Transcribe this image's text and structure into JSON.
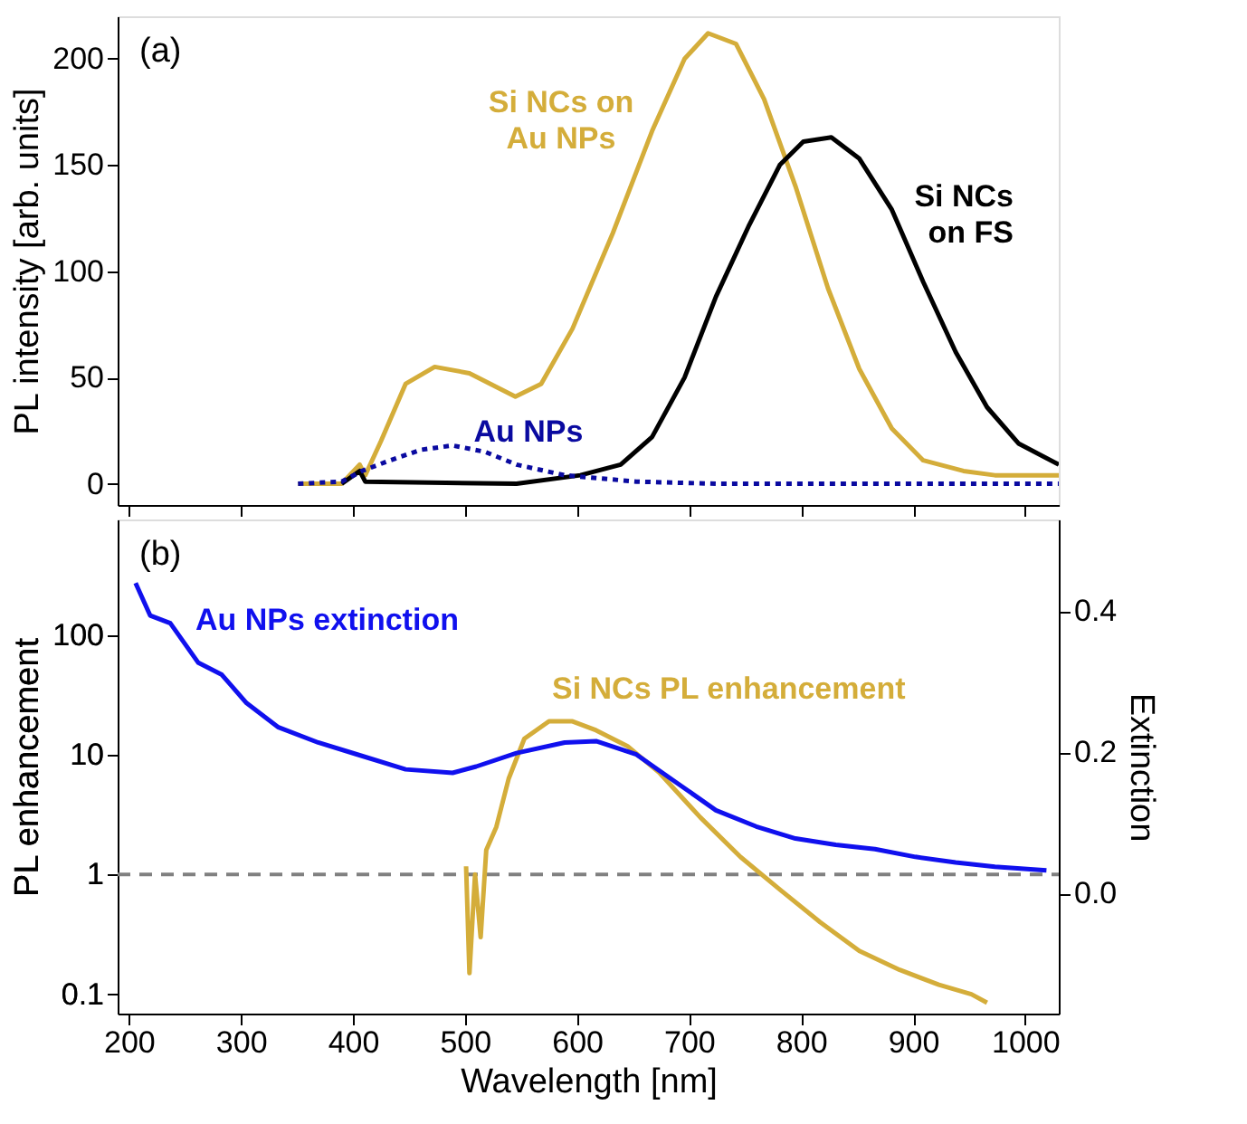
{
  "chart_data": [
    {
      "type": "line",
      "ylabel": "PL intensity [arb. units]",
      "xlim": [
        190,
        1030
      ],
      "xticks": [
        200,
        300,
        400,
        500,
        600,
        700,
        800,
        900,
        1000
      ],
      "ylim": [
        -10,
        220
      ],
      "yticks": [
        0,
        50,
        100,
        150,
        200
      ],
      "tick_labels": "y",
      "annotations": [
        "(a)"
      ],
      "series": [
        {
          "name": "Si NCs on\nAu NPs",
          "color": "#d4ad3a",
          "line_style": "solid",
          "x": [
            351,
            390,
            406,
            411,
            425,
            447,
            473,
            504,
            545,
            568,
            596,
            632,
            667,
            696,
            717,
            742,
            767,
            795,
            824,
            852,
            881,
            909,
            945,
            973,
            1030
          ],
          "values": [
            0,
            0,
            9,
            4,
            20,
            47,
            55,
            52,
            41,
            47,
            73,
            118,
            166,
            200,
            212,
            207,
            181,
            140,
            92,
            54,
            26,
            11,
            6,
            4,
            4
          ]
        },
        {
          "name": "Si NCs\non FS",
          "color": "#000000",
          "line_style": "solid",
          "x": [
            390,
            406,
            411,
            546,
            603,
            639,
            667,
            696,
            724,
            753,
            781,
            802,
            827,
            852,
            881,
            909,
            938,
            966,
            994,
            1030
          ],
          "values": [
            0,
            6,
            1,
            0,
            4,
            9,
            22,
            50,
            88,
            121,
            150,
            161,
            163,
            153,
            129,
            95,
            62,
            36,
            19,
            9
          ]
        },
        {
          "name": "Au NPs",
          "color": "#0a0aa0",
          "line_style": "dotted",
          "x": [
            351,
            390,
            408,
            433,
            461,
            489,
            518,
            546,
            589,
            653,
            724,
            1030
          ],
          "values": [
            0,
            1,
            6,
            11,
            16,
            18,
            15,
            9,
            4,
            1,
            0,
            0
          ]
        }
      ]
    },
    {
      "type": "line",
      "xlabel": "Wavelength [nm]",
      "ylabel": "PL enhancement",
      "y2label": "Extinction",
      "log": "y",
      "xlim": [
        190,
        1030
      ],
      "xticks": [
        200,
        300,
        400,
        500,
        600,
        700,
        800,
        900,
        1000
      ],
      "ylim": [
        0.069,
        920
      ],
      "yticks": [
        0.1,
        1,
        10,
        100
      ],
      "y2lim": [
        -0.17,
        0.53
      ],
      "y2ticks": [
        {
          "value": 0,
          "label": "0.0"
        },
        {
          "value": 0.2,
          "label": "0.2"
        },
        {
          "value": 0.4,
          "label": "0.4"
        }
      ],
      "annotations": [
        "(b)"
      ],
      "ref_lines": [
        {
          "axis": "y",
          "value": 1,
          "color": "#808080",
          "line_style": "dashed"
        }
      ],
      "series": [
        {
          "name": "Si NCs PL enhancement",
          "color": "#d4ad3a",
          "axis": "y",
          "line_style": "solid",
          "x": [
            501,
            504,
            509,
            514,
            519,
            528,
            539,
            553,
            575,
            596,
            617,
            645,
            674,
            710,
            746,
            781,
            817,
            852,
            888,
            923,
            952,
            966
          ],
          "values": [
            1.17,
            0.15,
            1.0,
            0.3,
            1.6,
            2.5,
            6.3,
            13.6,
            19,
            19,
            16,
            11.8,
            7.0,
            3.0,
            1.4,
            0.75,
            0.4,
            0.23,
            0.16,
            0.12,
            0.1,
            0.085
          ]
        },
        {
          "name": "Au NPs extinction",
          "color": "#1010ee",
          "axis": "y2",
          "line_style": "solid",
          "x": [
            206,
            219,
            237,
            262,
            283,
            305,
            333,
            369,
            404,
            447,
            489,
            510,
            546,
            589,
            617,
            653,
            689,
            724,
            760,
            795,
            831,
            866,
            902,
            938,
            973,
            1019
          ],
          "values": [
            0.44,
            0.394,
            0.383,
            0.327,
            0.31,
            0.27,
            0.236,
            0.214,
            0.197,
            0.176,
            0.171,
            0.18,
            0.199,
            0.214,
            0.216,
            0.197,
            0.157,
            0.118,
            0.095,
            0.078,
            0.069,
            0.063,
            0.052,
            0.044,
            0.038,
            0.033
          ]
        }
      ]
    }
  ]
}
